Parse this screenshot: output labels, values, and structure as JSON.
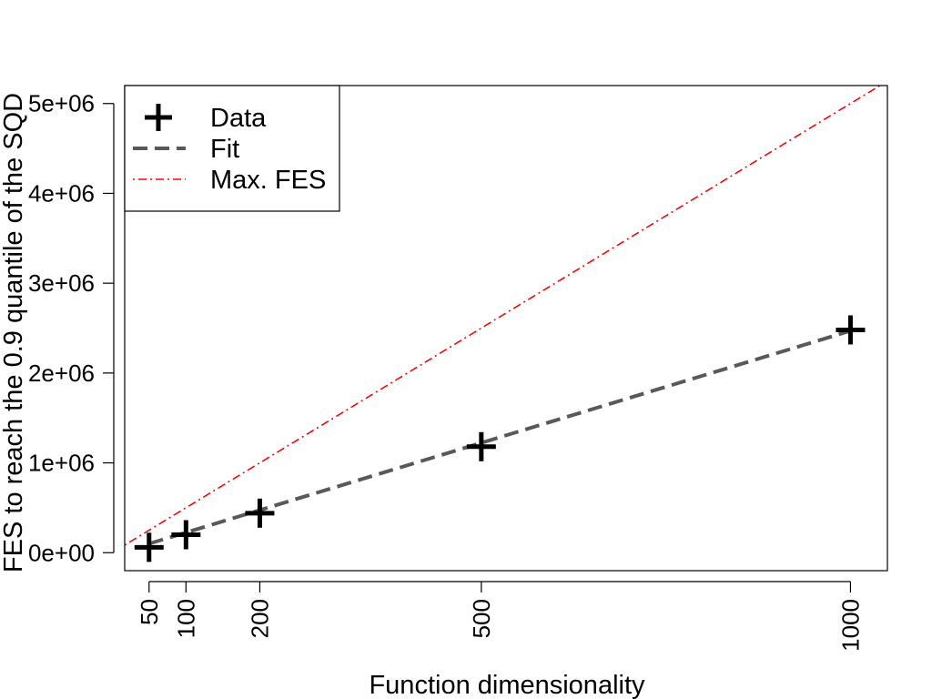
{
  "chart_data": {
    "type": "scatter",
    "title": "",
    "xlabel": "Function dimensionality",
    "ylabel": "FES to reach the 0.9 quantile of the SQD",
    "xlim": [
      17,
      1050
    ],
    "ylim": [
      -200000,
      5200000
    ],
    "x_ticks": [
      50,
      100,
      200,
      500,
      1000
    ],
    "x_tick_labels": [
      "50",
      "100",
      "200",
      "500",
      "1000"
    ],
    "y_ticks": [
      0,
      1000000,
      2000000,
      3000000,
      4000000,
      5000000
    ],
    "y_tick_labels": [
      "0e+00",
      "1e+06",
      "2e+06",
      "3e+06",
      "4e+06",
      "5e+06"
    ],
    "grid": false,
    "legend_position": "top-left",
    "series": [
      {
        "name": "Data",
        "kind": "points",
        "marker": "plus",
        "color": "#000000",
        "x": [
          50,
          100,
          200,
          500,
          1000
        ],
        "y": [
          60000,
          200000,
          440000,
          1180000,
          2480000
        ]
      },
      {
        "name": "Fit",
        "kind": "line",
        "style": "dashed",
        "color": "#595959",
        "x": [
          50,
          1000
        ],
        "y": [
          100000,
          2470000
        ]
      },
      {
        "name": "Max. FES",
        "kind": "line",
        "style": "dotdash",
        "color": "#ff0000",
        "x": [
          17,
          1050
        ],
        "y": [
          85000,
          5250000
        ]
      }
    ]
  }
}
